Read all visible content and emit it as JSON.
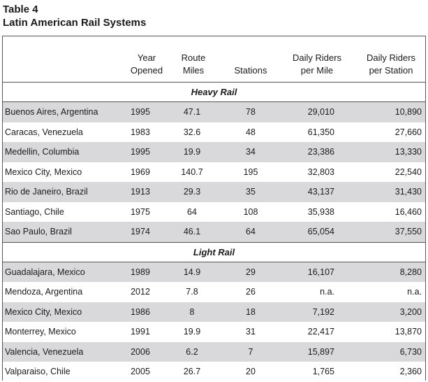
{
  "title_line1": "Table 4",
  "title_line2": "Latin American Rail Systems",
  "headers": {
    "year": [
      "Year",
      "Opened"
    ],
    "miles": [
      "Route",
      "Miles"
    ],
    "stations": [
      "Stations"
    ],
    "riders_mile": [
      "Daily Riders",
      "per Mile"
    ],
    "riders_station": [
      "Daily Riders",
      "per Station"
    ]
  },
  "sections": [
    {
      "label": "Heavy Rail",
      "rows": [
        {
          "city": "Buenos Aires, Argentina",
          "year": "1995",
          "miles": "47.1",
          "stations": "78",
          "rpm": "29,010",
          "rps": "10,890"
        },
        {
          "city": "Caracas, Venezuela",
          "year": "1983",
          "miles": "32.6",
          "stations": "48",
          "rpm": "61,350",
          "rps": "27,660"
        },
        {
          "city": "Medellin, Columbia",
          "year": "1995",
          "miles": "19.9",
          "stations": "34",
          "rpm": "23,386",
          "rps": "13,330"
        },
        {
          "city": "Mexico City, Mexico",
          "year": "1969",
          "miles": "140.7",
          "stations": "195",
          "rpm": "32,803",
          "rps": "22,540"
        },
        {
          "city": "Rio de Janeiro, Brazil",
          "year": "1913",
          "miles": "29.3",
          "stations": "35",
          "rpm": "43,137",
          "rps": "31,430"
        },
        {
          "city": "Santiago, Chile",
          "year": "1975",
          "miles": "64",
          "stations": "108",
          "rpm": "35,938",
          "rps": "16,460"
        },
        {
          "city": "Sao Paulo, Brazil",
          "year": "1974",
          "miles": "46.1",
          "stations": "64",
          "rpm": "65,054",
          "rps": "37,550"
        }
      ]
    },
    {
      "label": "Light Rail",
      "rows": [
        {
          "city": "Guadalajara, Mexico",
          "year": "1989",
          "miles": "14.9",
          "stations": "29",
          "rpm": "16,107",
          "rps": "8,280"
        },
        {
          "city": "Mendoza, Argentina",
          "year": "2012",
          "miles": "7.8",
          "stations": "26",
          "rpm": "n.a.",
          "rps": "n.a."
        },
        {
          "city": "Mexico City, Mexico",
          "year": "1986",
          "miles": "8",
          "stations": "18",
          "rpm": "7,192",
          "rps": "3,200"
        },
        {
          "city": "Monterrey, Mexico",
          "year": "1991",
          "miles": "19.9",
          "stations": "31",
          "rpm": "22,417",
          "rps": "13,870"
        },
        {
          "city": "Valencia, Venezuela",
          "year": "2006",
          "miles": "6.2",
          "stations": "7",
          "rpm": "15,897",
          "rps": "6,730"
        },
        {
          "city": "Valparaiso, Chile",
          "year": "2005",
          "miles": "26.7",
          "stations": "20",
          "rpm": "1,765",
          "rps": "2,360"
        }
      ]
    }
  ]
}
